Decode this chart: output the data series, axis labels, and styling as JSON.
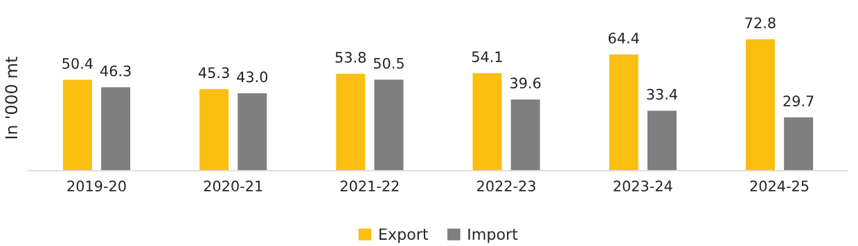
{
  "chart_data": {
    "type": "bar",
    "ylabel": "In '000 mt",
    "categories": [
      "2019-20",
      "2020-21",
      "2021-22",
      "2022-23",
      "2023-24",
      "2024-25"
    ],
    "series": [
      {
        "name": "Export",
        "color": "#fbbf12",
        "values": [
          50.4,
          45.3,
          53.8,
          54.1,
          64.4,
          72.8
        ],
        "value_labels": [
          "50.4",
          "45.3",
          "53.8",
          "54.1",
          "64.4",
          "72.8"
        ]
      },
      {
        "name": "Import",
        "color": "#7f7f7f",
        "values": [
          46.3,
          43.0,
          50.5,
          39.6,
          33.4,
          29.7
        ],
        "value_labels": [
          "46.3",
          "43.0",
          "50.5",
          "39.6",
          "33.4",
          "29.7"
        ]
      }
    ],
    "legend": "bottom"
  }
}
